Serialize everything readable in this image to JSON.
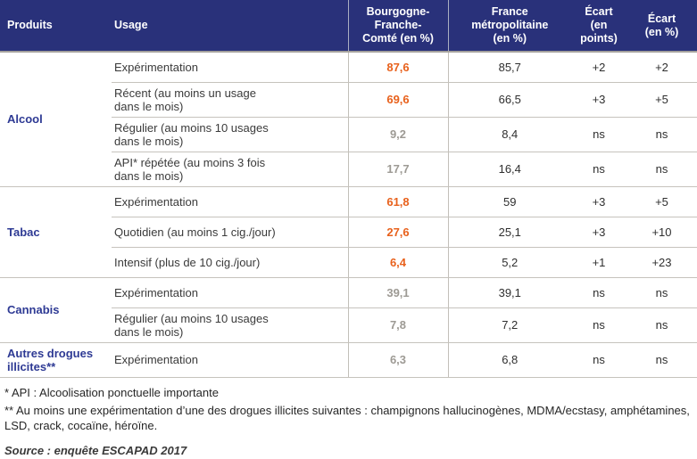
{
  "table": {
    "headers": {
      "produits": "Produits",
      "usage": "Usage",
      "bfc": "Bourgogne-\nFranche-\nComté (en %)",
      "france": "France\nmétropolitaine\n(en %)",
      "ecart_points": "Écart\n(en points)",
      "ecart_pct": "Écart\n(en %)"
    },
    "groups": [
      {
        "product": "Alcool",
        "rows": [
          {
            "usage": "Expérimentation",
            "bfc": "87,6",
            "france": "85,7",
            "ecart_points": "+2",
            "ecart_pct": "+2",
            "significant": true
          },
          {
            "usage": "Récent (au moins un usage\ndans le mois)",
            "bfc": "69,6",
            "france": "66,5",
            "ecart_points": "+3",
            "ecart_pct": "+5",
            "significant": true
          },
          {
            "usage": "Régulier (au moins 10 usages\ndans le mois)",
            "bfc": "9,2",
            "france": "8,4",
            "ecart_points": "ns",
            "ecart_pct": "ns",
            "significant": false
          },
          {
            "usage": "API* répétée (au moins 3 fois\ndans le mois)",
            "bfc": "17,7",
            "france": "16,4",
            "ecart_points": "ns",
            "ecart_pct": "ns",
            "significant": false
          }
        ]
      },
      {
        "product": "Tabac",
        "rows": [
          {
            "usage": "Expérimentation",
            "bfc": "61,8",
            "france": "59",
            "ecart_points": "+3",
            "ecart_pct": "+5",
            "significant": true
          },
          {
            "usage": "Quotidien (au moins 1 cig./jour)",
            "bfc": "27,6",
            "france": "25,1",
            "ecart_points": "+3",
            "ecart_pct": "+10",
            "significant": true
          },
          {
            "usage": "Intensif (plus de 10 cig./jour)",
            "bfc": "6,4",
            "france": "5,2",
            "ecart_points": "+1",
            "ecart_pct": "+23",
            "significant": true
          }
        ]
      },
      {
        "product": "Cannabis",
        "rows": [
          {
            "usage": "Expérimentation",
            "bfc": "39,1",
            "france": "39,1",
            "ecart_points": "ns",
            "ecart_pct": "ns",
            "significant": false
          },
          {
            "usage": "Régulier (au moins 10 usages\ndans le mois)",
            "bfc": "7,8",
            "france": "7,2",
            "ecart_points": "ns",
            "ecart_pct": "ns",
            "significant": false
          }
        ]
      },
      {
        "product": "Autres drogues\nillicites**",
        "rows": [
          {
            "usage": "Expérimentation",
            "bfc": "6,3",
            "france": "6,8",
            "ecart_points": "ns",
            "ecart_pct": "ns",
            "significant": false
          }
        ]
      }
    ]
  },
  "footnotes": {
    "api": "* API : Alcoolisation ponctuelle importante",
    "drugs": "** Au moins une expérimentation d’une des drogues illicites suivantes : champignons hallucinogènes, MDMA/ecstasy, amphétamines, LSD, crack, cocaïne, héroïne.",
    "source": "Source : enquête ESCAPAD 2017"
  },
  "colors": {
    "header_bg": "#29317a",
    "product_label": "#2e3a94",
    "value_significant": "#e8611c",
    "value_ns": "#9d9a94",
    "grid_line": "#c6c3bd",
    "text": "#3a3a3a"
  }
}
